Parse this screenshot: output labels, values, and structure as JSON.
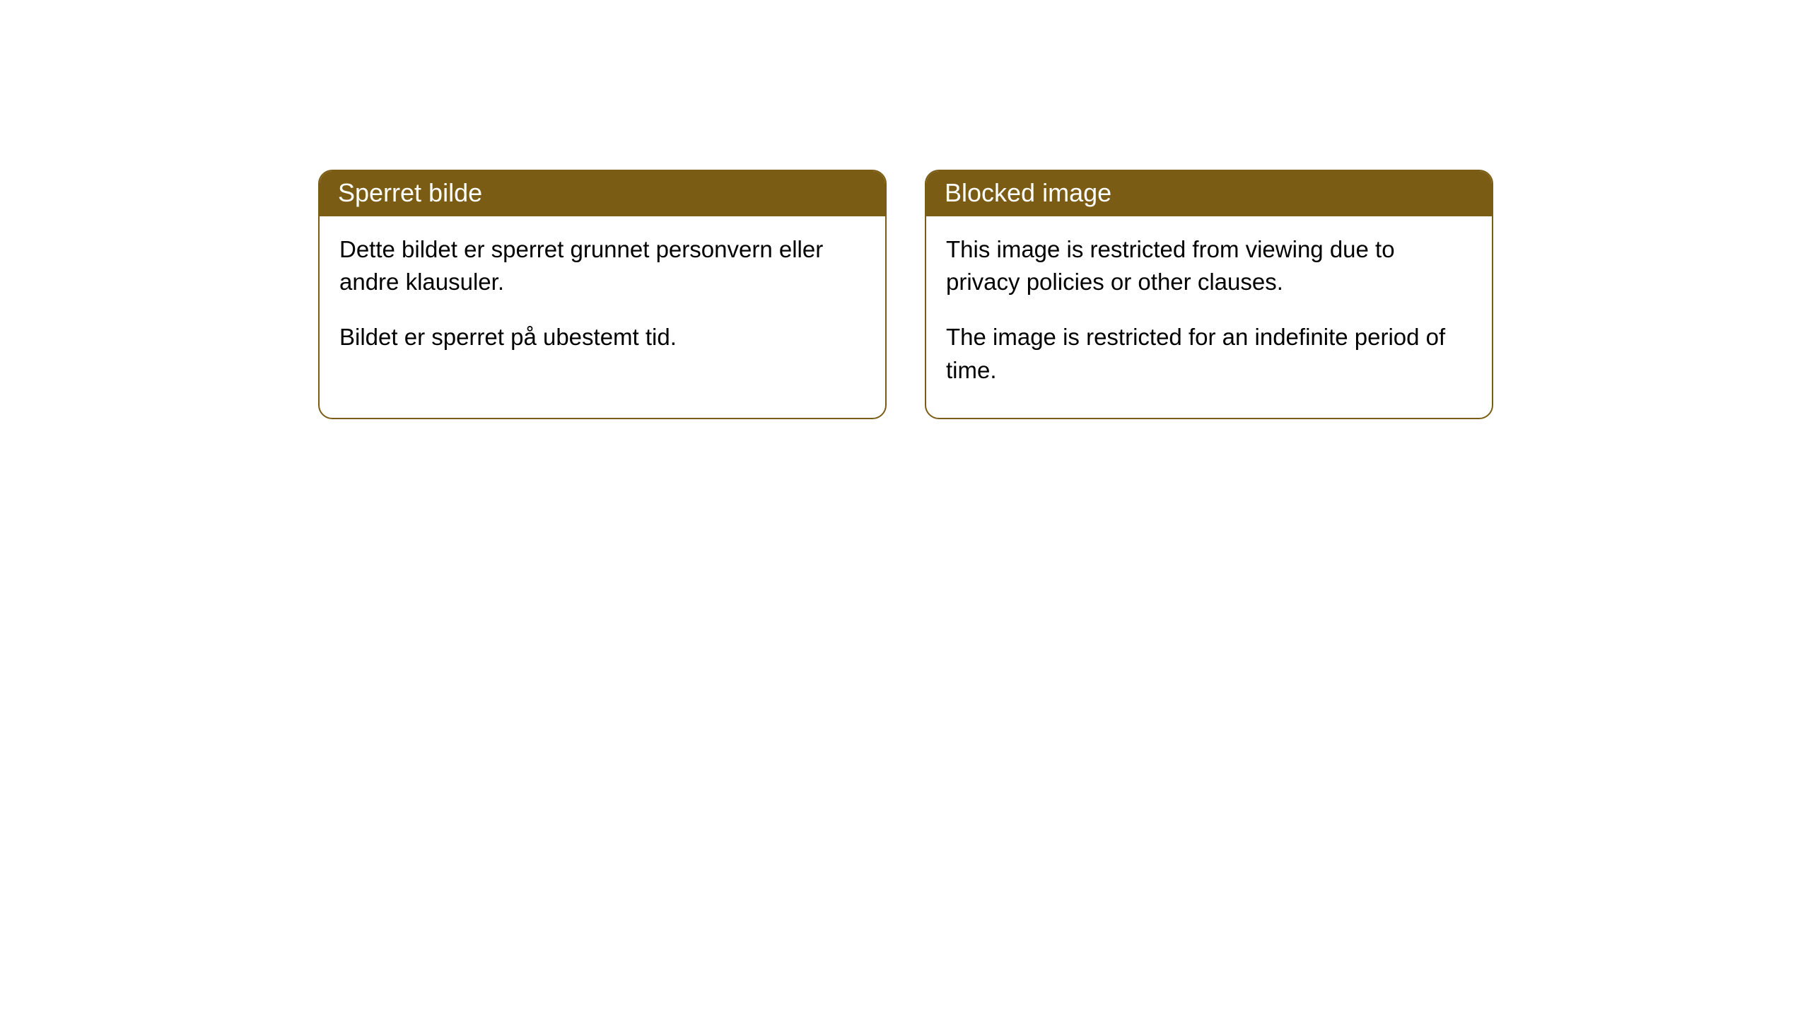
{
  "cards": [
    {
      "title": "Sperret bilde",
      "paragraph1": "Dette bildet er sperret grunnet personvern eller andre klausuler.",
      "paragraph2": "Bildet er sperret på ubestemt tid."
    },
    {
      "title": "Blocked image",
      "paragraph1": "This image is restricted from viewing due to privacy policies or other clauses.",
      "paragraph2": "The image is restricted for an indefinite period of time."
    }
  ],
  "style": {
    "header_background": "#7a5c14",
    "header_text_color": "#ffffff",
    "border_color": "#7a5c14",
    "body_text_color": "#000000",
    "page_background": "#ffffff",
    "border_radius": 20,
    "header_fontsize": 36,
    "body_fontsize": 33
  }
}
